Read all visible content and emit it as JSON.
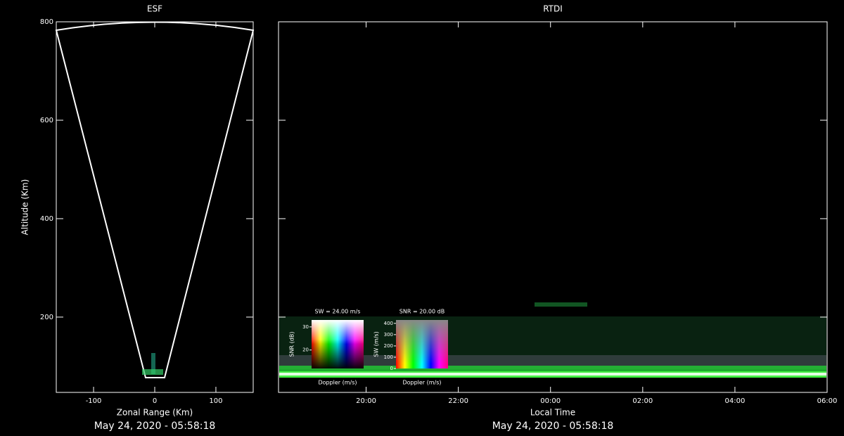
{
  "chart_data": [
    {
      "type": "sector",
      "title": "ESF",
      "x_label": "Zonal Range (Km)",
      "y_label": "Altitude (Km)",
      "xlim": [
        -161,
        161
      ],
      "ylim": [
        47,
        800
      ],
      "xticks": [
        -100,
        0,
        100
      ],
      "yticks": [
        200,
        400,
        600,
        800
      ],
      "footer": "May 24, 2020 - 05:58:18"
    },
    {
      "type": "rtdi",
      "title": "RTDI",
      "x_label": "Local Time",
      "xlim": [
        18.1,
        30
      ],
      "ylim": [
        47,
        800
      ],
      "xticks": [
        {
          "value": 20,
          "label": "20:00"
        },
        {
          "value": 22,
          "label": "22:00"
        },
        {
          "value": 24,
          "label": "00:00"
        },
        {
          "value": 26,
          "label": "02:00"
        },
        {
          "value": 28,
          "label": "04:00"
        },
        {
          "value": 30,
          "label": "06:00"
        }
      ],
      "yticks": [
        200,
        400,
        600,
        800
      ],
      "footer": "May 24, 2020 - 05:58:18",
      "insets": [
        {
          "title": "SW = 24.00 m/s",
          "x_label": "Doppler (m/s)",
          "y_label": "SNR (dB)",
          "yticks": [
            30,
            20
          ]
        },
        {
          "title": "SNR = 20.00 dB",
          "x_label": "Doppler (m/s)",
          "y_label": "SW (m/s)",
          "yticks": [
            400,
            300,
            200,
            100,
            0
          ]
        }
      ]
    }
  ]
}
